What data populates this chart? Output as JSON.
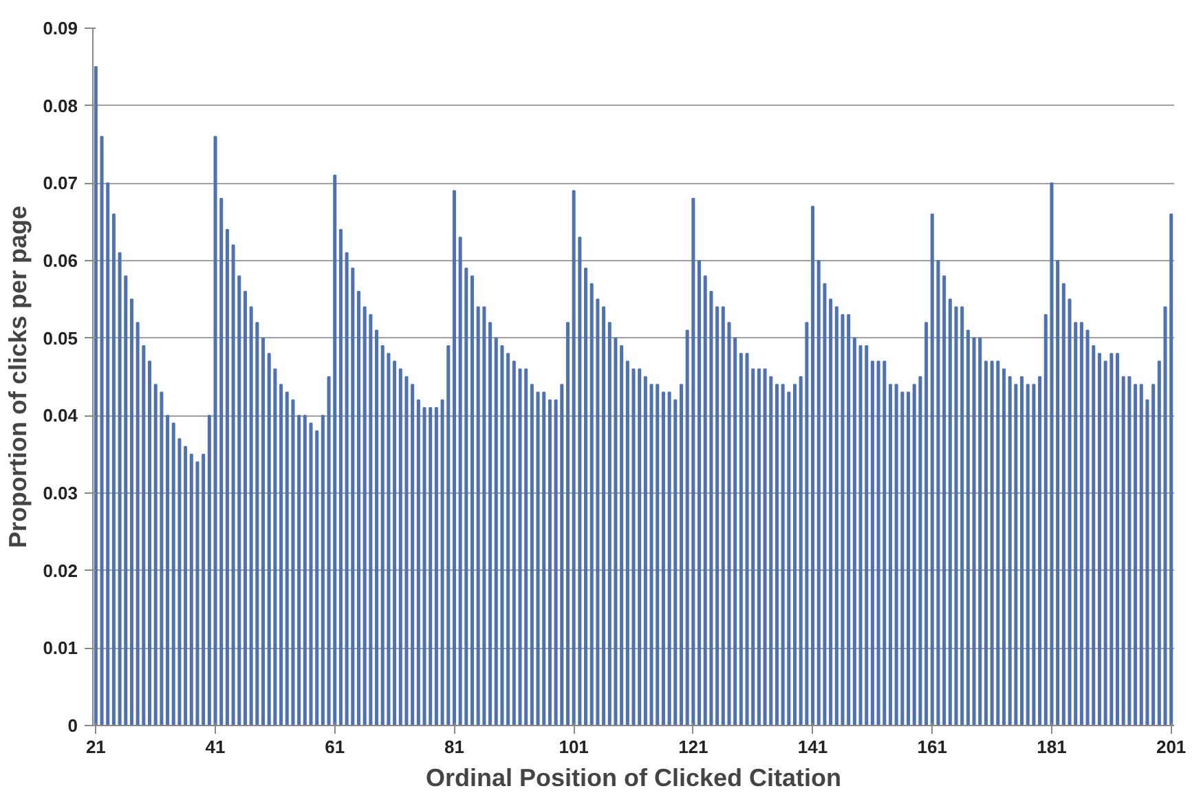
{
  "chart_data": {
    "type": "bar",
    "xlabel": "Ordinal Position of Clicked Citation",
    "ylabel": "Proportion of clicks per page",
    "categories": [
      "21",
      null,
      null,
      null,
      null,
      null,
      null,
      null,
      null,
      null,
      null,
      null,
      null,
      null,
      null,
      null,
      null,
      null,
      null,
      null,
      "41",
      null,
      null,
      null,
      null,
      null,
      null,
      null,
      null,
      null,
      null,
      null,
      null,
      null,
      null,
      null,
      null,
      null,
      null,
      null,
      "61",
      null,
      null,
      null,
      null,
      null,
      null,
      null,
      null,
      null,
      null,
      null,
      null,
      null,
      null,
      null,
      null,
      null,
      null,
      null,
      "81",
      null,
      null,
      null,
      null,
      null,
      null,
      null,
      null,
      null,
      null,
      null,
      null,
      null,
      null,
      null,
      null,
      null,
      null,
      null,
      "101",
      null,
      null,
      null,
      null,
      null,
      null,
      null,
      null,
      null,
      null,
      null,
      null,
      null,
      null,
      null,
      null,
      null,
      null,
      null,
      "121",
      null,
      null,
      null,
      null,
      null,
      null,
      null,
      null,
      null,
      null,
      null,
      null,
      null,
      null,
      null,
      null,
      null,
      null,
      null,
      "141",
      null,
      null,
      null,
      null,
      null,
      null,
      null,
      null,
      null,
      null,
      null,
      null,
      null,
      null,
      null,
      null,
      null,
      null,
      null,
      "161",
      null,
      null,
      null,
      null,
      null,
      null,
      null,
      null,
      null,
      null,
      null,
      null,
      null,
      null,
      null,
      null,
      null,
      null,
      null,
      "181",
      null,
      null,
      null,
      null,
      null,
      null,
      null,
      null,
      null,
      null,
      null,
      null,
      null,
      null,
      null,
      null,
      null,
      null,
      null,
      "201"
    ],
    "values": [
      0.085,
      0.076,
      0.07,
      0.066,
      0.061,
      0.058,
      0.055,
      0.052,
      0.049,
      0.047,
      0.044,
      0.043,
      0.04,
      0.039,
      0.037,
      0.036,
      0.035,
      0.034,
      0.035,
      0.04,
      0.076,
      0.068,
      0.064,
      0.062,
      0.058,
      0.056,
      0.054,
      0.052,
      0.05,
      0.048,
      0.046,
      0.044,
      0.043,
      0.042,
      0.04,
      0.04,
      0.039,
      0.038,
      0.04,
      0.045,
      0.071,
      0.064,
      0.061,
      0.059,
      0.056,
      0.054,
      0.053,
      0.051,
      0.049,
      0.048,
      0.047,
      0.046,
      0.045,
      0.044,
      0.042,
      0.041,
      0.041,
      0.041,
      0.042,
      0.049,
      0.069,
      0.063,
      0.059,
      0.058,
      0.054,
      0.054,
      0.052,
      0.05,
      0.049,
      0.048,
      0.047,
      0.046,
      0.046,
      0.044,
      0.043,
      0.043,
      0.042,
      0.042,
      0.044,
      0.052,
      0.069,
      0.063,
      0.059,
      0.057,
      0.055,
      0.054,
      0.052,
      0.05,
      0.049,
      0.047,
      0.046,
      0.046,
      0.045,
      0.044,
      0.044,
      0.043,
      0.043,
      0.042,
      0.044,
      0.051,
      0.068,
      0.06,
      0.058,
      0.056,
      0.054,
      0.054,
      0.052,
      0.05,
      0.048,
      0.048,
      0.046,
      0.046,
      0.046,
      0.045,
      0.044,
      0.044,
      0.043,
      0.044,
      0.045,
      0.052,
      0.067,
      0.06,
      0.057,
      0.055,
      0.054,
      0.053,
      0.053,
      0.05,
      0.049,
      0.049,
      0.047,
      0.047,
      0.047,
      0.044,
      0.044,
      0.043,
      0.043,
      0.044,
      0.045,
      0.052,
      0.066,
      0.06,
      0.058,
      0.055,
      0.054,
      0.054,
      0.051,
      0.05,
      0.05,
      0.047,
      0.047,
      0.047,
      0.046,
      0.045,
      0.044,
      0.045,
      0.044,
      0.044,
      0.045,
      0.053,
      0.07,
      0.06,
      0.057,
      0.055,
      0.052,
      0.052,
      0.051,
      0.049,
      0.048,
      0.047,
      0.048,
      0.048,
      0.045,
      0.045,
      0.044,
      0.044,
      0.042,
      0.044,
      0.047,
      0.054,
      0.066
    ],
    "color": "#4f72b0",
    "ylim": [
      0,
      0.09
    ],
    "yticks": [
      0,
      0.01,
      0.02,
      0.03,
      0.04,
      0.05,
      0.06,
      0.07,
      0.08,
      0.09
    ],
    "grid": "y"
  }
}
